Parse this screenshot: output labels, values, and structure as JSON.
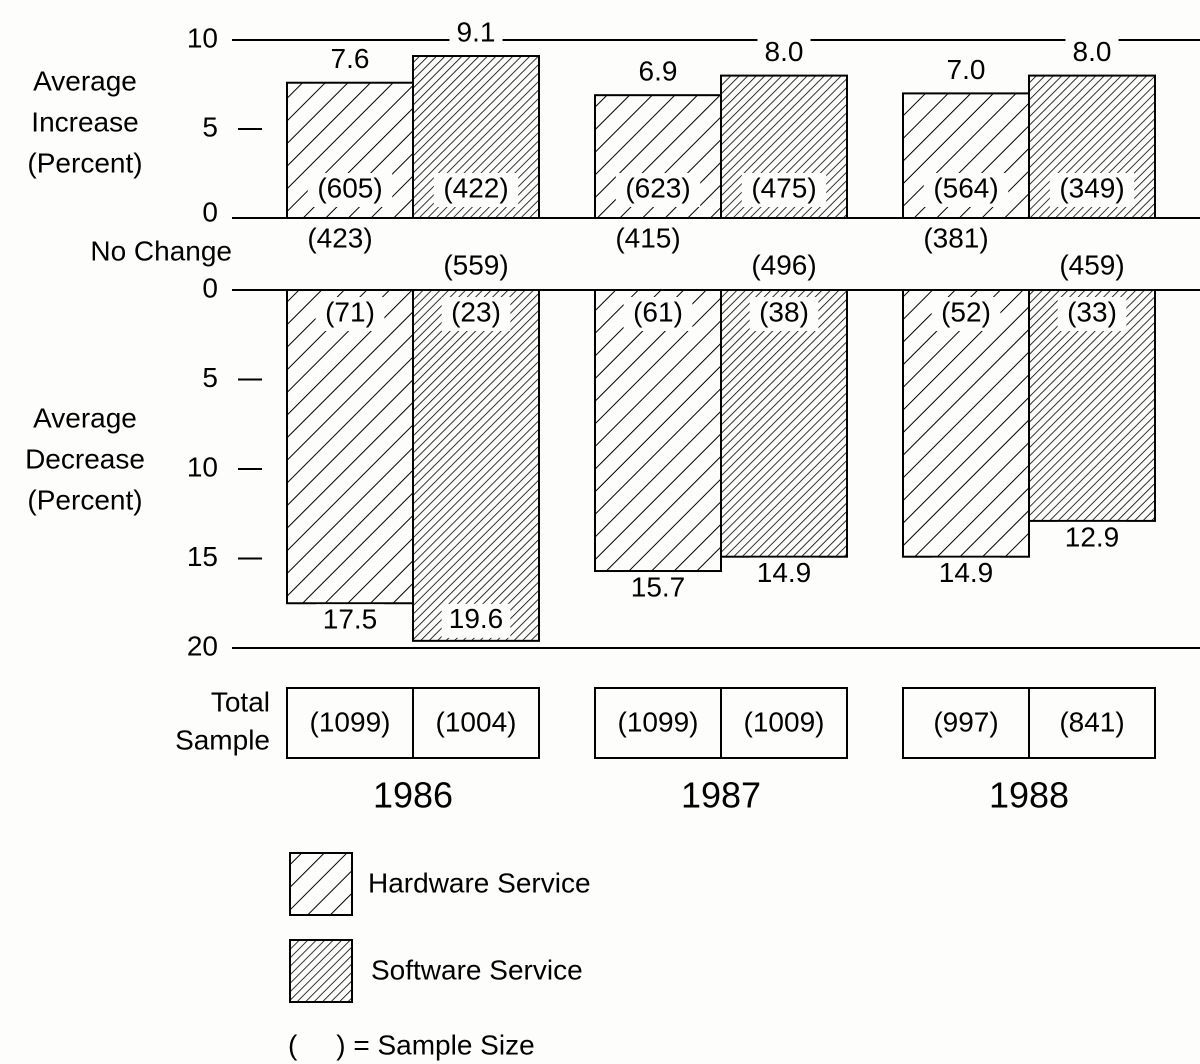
{
  "chart_data": [
    {
      "type": "bar",
      "y_label": [
        "Average",
        "Increase",
        "(Percent)"
      ],
      "ylim": [
        0,
        10
      ],
      "yticks": [
        0,
        5,
        10
      ],
      "series": [
        {
          "name": "Hardware Service",
          "pattern": "sparse-hatch",
          "color": "#000000",
          "values": [
            7.6,
            6.9,
            7.0
          ],
          "value_labels": [
            "7.6",
            "6.9",
            "7.0"
          ],
          "sample_sizes": [
            "(605)",
            "(623)",
            "(564)"
          ]
        },
        {
          "name": "Software Service",
          "pattern": "dense-hatch",
          "color": "#000000",
          "values": [
            9.1,
            8.0,
            8.0
          ],
          "value_labels": [
            "9.1",
            "8.0",
            "8.0"
          ],
          "sample_sizes": [
            "(422)",
            "(475)",
            "(349)"
          ]
        }
      ]
    },
    {
      "type": "bar",
      "y_label": [
        "Average",
        "Decrease",
        "(Percent)"
      ],
      "inverted": true,
      "categories": [
        "1986",
        "1987",
        "1988"
      ],
      "ylim": [
        0,
        20
      ],
      "yticks": [
        0,
        5,
        10,
        15,
        20
      ],
      "series": [
        {
          "pattern": "sparse-hatch",
          "color": "#000000",
          "values": [
            17.5,
            15.7,
            14.9
          ],
          "sample_sizes": [
            "(71)",
            "(61)",
            "(52)"
          ]
        },
        {
          "pattern": "dense-hatch",
          "color": "#000000",
          "values": [
            19.6,
            14.9,
            12.9
          ],
          "sample_sizes": [
            "(23)",
            "(38)",
            "(33)"
          ]
        }
      ]
    }
  ],
  "no_change": {
    "label": "No Change",
    "series": [
      [
        "(423)",
        "(415)",
        "(381)"
      ],
      [
        "(559)",
        "(496)",
        "(459)"
      ]
    ]
  },
  "total_sample": {
    "label": [
      "Total",
      "Sample"
    ],
    "series": [
      [
        "(1099)",
        "(1099)",
        "(997)"
      ],
      [
        "(1004)",
        "(1009)",
        "(841)"
      ]
    ]
  },
  "legend": {
    "note": "(     ) = Sample Size"
  }
}
